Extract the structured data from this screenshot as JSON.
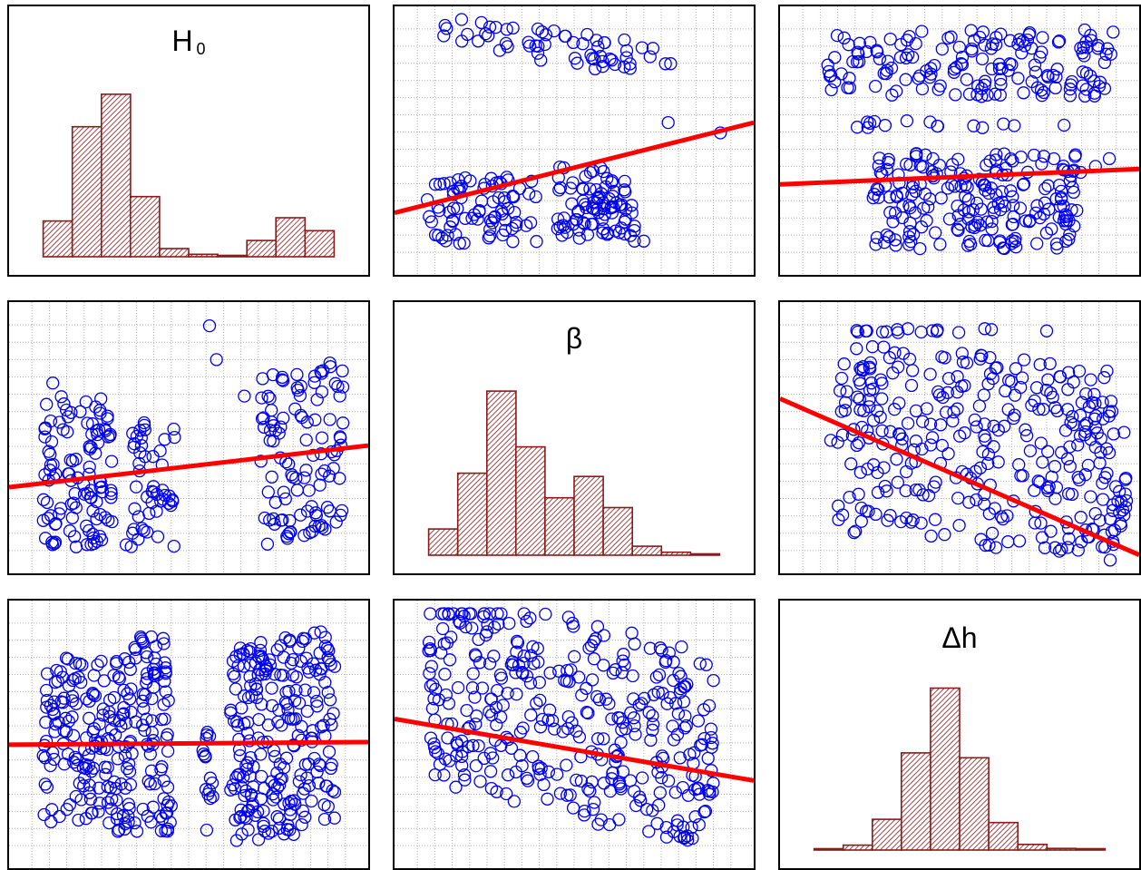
{
  "colors": {
    "points": "#0000ee",
    "fit_line": "#ff0000",
    "bars_fill": "#8b1a1a",
    "grid": "#b0b0b0"
  },
  "chart_data": [
    {
      "id": "h0-hist",
      "type": "bar",
      "diagonal": true,
      "title_main": "H",
      "title_sub": "0",
      "values": [
        0.22,
        0.8,
        1.0,
        0.37,
        0.05,
        0.015,
        0.005,
        0.1,
        0.24,
        0.16
      ]
    },
    {
      "id": "beta-vs-h0",
      "type": "scatter",
      "fit_line": [
        0.22,
        0.57
      ],
      "clusters": [
        {
          "x": [
            0.12,
            0.78
          ],
          "y": [
            0.8,
            0.93
          ],
          "n": 60,
          "slope": -0.2
        },
        {
          "x": [
            0.07,
            0.4
          ],
          "y": [
            0.1,
            0.36
          ],
          "n": 80
        },
        {
          "x": [
            0.45,
            0.65
          ],
          "y": [
            0.12,
            0.4
          ],
          "n": 60
        },
        {
          "x": [
            0.5,
            0.68
          ],
          "y": [
            0.14,
            0.3
          ],
          "n": 30,
          "slope": -0.6
        }
      ],
      "points": [
        [
          0.77,
          0.57
        ],
        [
          0.92,
          0.53
        ],
        [
          0.7,
          0.11
        ]
      ]
    },
    {
      "id": "dh-vs-h0",
      "type": "scatter",
      "fit_line": [
        0.33,
        0.39
      ],
      "clusters": [
        {
          "x": [
            0.12,
            0.95
          ],
          "y": [
            0.67,
            0.93
          ],
          "n": 160
        },
        {
          "x": [
            0.2,
            0.7
          ],
          "y": [
            0.55,
            0.58
          ],
          "n": 14
        },
        {
          "x": [
            0.25,
            0.85
          ],
          "y": [
            0.08,
            0.46
          ],
          "n": 210
        }
      ],
      "points": [
        [
          0.89,
          0.4
        ],
        [
          0.93,
          0.43
        ],
        [
          0.8,
          0.56
        ]
      ]
    },
    {
      "id": "h0-vs-beta",
      "type": "scatter",
      "fit_line": [
        0.31,
        0.47
      ],
      "clusters": [
        {
          "x": [
            0.08,
            0.28
          ],
          "y": [
            0.08,
            0.66
          ],
          "n": 110
        },
        {
          "x": [
            0.32,
            0.46
          ],
          "y": [
            0.08,
            0.6
          ],
          "n": 50
        },
        {
          "x": [
            0.7,
            0.95
          ],
          "y": [
            0.12,
            0.77
          ],
          "n": 110,
          "slope": 0.3
        }
      ],
      "points": [
        [
          0.56,
          0.93
        ],
        [
          0.58,
          0.8
        ],
        [
          0.11,
          0.71
        ],
        [
          0.66,
          0.66
        ]
      ]
    },
    {
      "id": "beta-hist",
      "type": "bar",
      "diagonal": true,
      "title_main": "β",
      "title_sub": "",
      "values": [
        0.16,
        0.5,
        1.0,
        0.66,
        0.35,
        0.48,
        0.29,
        0.055,
        0.018,
        0.006
      ]
    },
    {
      "id": "dh-vs-beta",
      "type": "scatter",
      "fit_line": [
        0.65,
        0.05
      ],
      "clusters": [
        {
          "x": [
            0.2,
            0.6
          ],
          "y": [
            0.9,
            0.92
          ],
          "n": 16
        },
        {
          "x": [
            0.15,
            0.95
          ],
          "y": [
            0.08,
            0.82
          ],
          "n": 300,
          "slope": -0.15
        },
        {
          "x": [
            0.8,
            0.98
          ],
          "y": [
            0.08,
            0.6
          ],
          "n": 40
        }
      ],
      "points": [
        [
          0.75,
          0.91
        ],
        [
          0.68,
          0.73
        ],
        [
          0.13,
          0.49
        ]
      ]
    },
    {
      "id": "h0-vs-dh",
      "type": "scatter",
      "fit_line": [
        0.46,
        0.47
      ],
      "clusters": [
        {
          "x": [
            0.08,
            0.45
          ],
          "y": [
            0.12,
            0.8
          ],
          "n": 240
        },
        {
          "x": [
            0.53,
            0.57
          ],
          "y": [
            0.12,
            0.52
          ],
          "n": 16
        },
        {
          "x": [
            0.62,
            0.92
          ],
          "y": [
            0.1,
            0.88
          ],
          "n": 240,
          "slope": 0.2
        },
        {
          "x": [
            0.34,
            0.44
          ],
          "y": [
            0.78,
            0.88
          ],
          "n": 14
        }
      ],
      "points": []
    },
    {
      "id": "beta-vs-dh",
      "type": "scatter",
      "fit_line": [
        0.56,
        0.32
      ],
      "clusters": [
        {
          "x": [
            0.08,
            0.88
          ],
          "y": [
            0.18,
            0.96
          ],
          "n": 360,
          "slope": -0.35
        },
        {
          "x": [
            0.88,
            0.9
          ],
          "y": [
            0.25,
            0.62
          ],
          "n": 12
        }
      ],
      "points": [
        [
          0.9,
          0.71
        ]
      ]
    },
    {
      "id": "dh-hist",
      "type": "bar",
      "diagonal": true,
      "title_main": "Δh",
      "title_sub": "",
      "values": [
        0.006,
        0.03,
        0.19,
        0.6,
        1.0,
        0.57,
        0.17,
        0.035,
        0.01,
        0.004
      ]
    }
  ]
}
